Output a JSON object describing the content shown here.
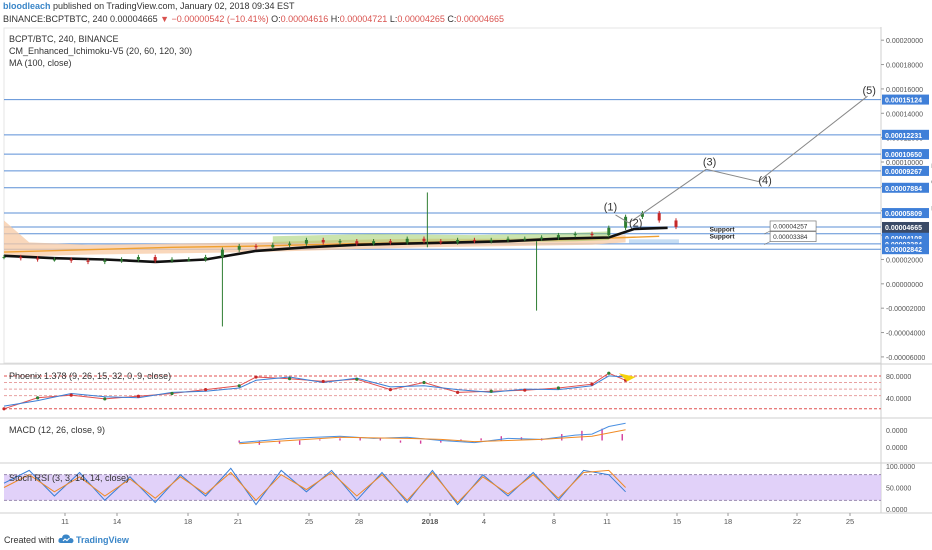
{
  "header": {
    "author": "bloodleach",
    "published": "published on TradingView.com, January 02, 2018 09:34 EST",
    "symbol_line": "BINANCE:BCPTBTC, 240",
    "last": "0.00004665",
    "change": "▼ −0.00000542 (−10.41%)",
    "o_label": "O:",
    "o": "0.00004616",
    "h_label": "H:",
    "h": "0.00004721",
    "l_label": "L:",
    "l": "0.00004265",
    "c_label": "C:",
    "c": "0.00004665"
  },
  "legend": {
    "pair": "BCPT/BTC, 240, BINANCE",
    "ichimoku": "CM_Enhanced_Ichimoku-V5 (20, 60, 120, 30)",
    "ma": "MA (100, close)",
    "phoenix": "Phoenix 1.378 (9, 26, 15, 32, 0, 9, close)",
    "macd": "MACD (12, 26, close, 9)",
    "stoch": "Stoch RSI (3, 3, 14, 14, close)"
  },
  "footer": {
    "created_with": "Created with",
    "brand": "TradingView"
  },
  "colors": {
    "candle_up": "#2e7d32",
    "candle_down": "#c62828",
    "cloud": "#f7c9a4",
    "cloud_green": "#8bc34a",
    "kijun": "#111111",
    "ma100": "#f0a030",
    "hline": "#5b8fd6",
    "projection": "#888888",
    "tag_blue": "#3f7fd8",
    "stoch_band": "#d9c6f7",
    "macd_line": "#4a90e2",
    "signal_line": "#f08a24",
    "histogram": "#d43c9b"
  },
  "chart_data": [
    {
      "type": "candlestick",
      "title": "BCPT/BTC, 240, BINANCE",
      "x_tick_labels": [
        "11",
        "14",
        "18",
        "21",
        "25",
        "28",
        "2018",
        "4",
        "8",
        "11",
        "15",
        "18",
        "22",
        "25"
      ],
      "y_tick_labels": [
        "0.00020000",
        "0.00018000",
        "0.00016000",
        "0.00014000",
        "0.00012000",
        "0.00010000",
        "0.00008000",
        "0.00006000",
        "0.00004000",
        "0.00002000",
        "0.00000000",
        "-0.00002000",
        "-0.00004000",
        "-0.00006000"
      ],
      "ylim": [
        -6.5e-05,
        0.00021
      ],
      "series": [
        {
          "type": "line",
          "name": "MA (100, close)",
          "x": [
            0,
            5,
            10,
            15,
            18,
            21,
            25,
            28,
            32,
            35,
            39
          ],
          "y": [
            2.6e-05,
            2.8e-05,
            3e-05,
            3.1e-05,
            3.2e-05,
            3.3e-05,
            3.4e-05,
            3.5e-05,
            3.6e-05,
            3.7e-05,
            3.9e-05
          ]
        }
      ],
      "kijun_line": {
        "x": [
          0,
          3,
          6,
          9,
          12,
          15,
          18,
          21,
          24,
          27,
          30,
          33,
          36,
          37.5,
          39.5
        ],
        "y": [
          2.3e-05,
          2.1e-05,
          2e-05,
          1.8e-05,
          2e-05,
          2.7e-05,
          3e-05,
          3.2e-05,
          3.3e-05,
          3.4e-05,
          3.5e-05,
          3.7e-05,
          3.8e-05,
          4.5e-05,
          4.6e-05
        ]
      },
      "candles_close": [
        2.2e-05,
        2.1e-05,
        2e-05,
        2e-05,
        1.9e-05,
        1.8e-05,
        1.9e-05,
        2e-05,
        2.2e-05,
        1.9e-05,
        2e-05,
        2e-05,
        2.2e-05,
        2.8e-05,
        3.1e-05,
        3e-05,
        3.2e-05,
        3.3e-05,
        3.6e-05,
        3.4e-05,
        3.5e-05,
        3.3e-05,
        3.5e-05,
        3.4e-05,
        3.7e-05,
        3.5e-05,
        3.4e-05,
        3.6e-05,
        3.5e-05,
        3.6e-05,
        3.7e-05,
        3.7e-05,
        3.8e-05,
        4e-05,
        4.1e-05,
        4e-05,
        4.6e-05,
        5.5e-05,
        5.8e-05,
        5.2e-05,
        4.67e-05
      ],
      "wicks": [
        {
          "x": 13.0,
          "high": 2.8e-05,
          "low": -3.5e-05
        },
        {
          "x": 25.2,
          "high": 7.5e-05,
          "low": 3e-05
        },
        {
          "x": 31.7,
          "high": 3.5e-05,
          "low": -2.2e-05
        }
      ],
      "horizontal_lines": [
        0.00015124,
        0.00012231,
        0.0001065,
        9.267e-05,
        7.884e-05,
        5.809e-05,
        4.665e-05,
        4.108e-05,
        3.284e-05,
        2.842e-05
      ],
      "price_tags": [
        "0.00015124",
        "0.00012231",
        "0.00010650",
        "0.00009267",
        "0.00007884",
        "0.00005809",
        "0.00004665",
        "01:25:06",
        "0.00004108",
        "0.00003284",
        "0.00002842"
      ],
      "price_tags_dark": [
        "0.00004665",
        "01:25:06"
      ],
      "callouts": [
        {
          "text": "0.00015121",
          "x": 60.5,
          "y": 0.00015121
        },
        {
          "text": "0.00012343",
          "x": 60.5,
          "y": 0.00012343
        },
        {
          "text": "0.00010706",
          "x": 60.5,
          "y": 0.00010706
        },
        {
          "text": "0.00009267",
          "x": 60.5,
          "y": 9.267e-05
        },
        {
          "text": "0.00007878",
          "x": 60.5,
          "y": 7.878e-05
        },
        {
          "text": "0.00005795",
          "x": 60.5,
          "y": 5.795e-05
        },
        {
          "text": "0.00004257",
          "x": 45.6,
          "y": 4.257e-05
        },
        {
          "text": "0.00003384",
          "x": 45.6,
          "y": 3.384e-05
        }
      ],
      "annotations": [
        {
          "text": "Resistance",
          "x": 55.2,
          "y": 9.5e-05
        },
        {
          "text": "61.8",
          "x": 55.2,
          "y": 8.2e-05
        },
        {
          "text": "Resistance",
          "x": 55.2,
          "y": 6e-05
        },
        {
          "text": "Support",
          "x": 42.0,
          "y": 4.3e-05
        },
        {
          "text": "Support",
          "x": 42.0,
          "y": 3.7e-05
        }
      ],
      "elliott_waves": [
        {
          "label": "(1)",
          "x": 35.7,
          "y": 6e-05
        },
        {
          "label": "(2)",
          "x": 37.2,
          "y": 4.7e-05
        },
        {
          "label": "(3)",
          "x": 41.6,
          "y": 9.7e-05
        },
        {
          "label": "(4)",
          "x": 44.9,
          "y": 8.2e-05
        },
        {
          "label": "(5)",
          "x": 51.1,
          "y": 0.000156
        }
      ],
      "wave_path": {
        "x": [
          37.2,
          41.8,
          44.9,
          51.4
        ],
        "y": [
          5e-05,
          9.4e-05,
          8.4e-05,
          0.000154
        ]
      }
    },
    {
      "type": "line",
      "title": "Phoenix 1.378 (9, 26, 15, 32, 0, 9, close)",
      "y_tick_labels": [
        "80.0000",
        "40.0000"
      ],
      "ylim": [
        5,
        100
      ],
      "reference_lines": [
        80,
        68,
        56,
        44,
        20
      ],
      "series": [
        {
          "name": "",
          "x": [
            0,
            2,
            4,
            6,
            8,
            10,
            12,
            14,
            15,
            17,
            19,
            21,
            23,
            25,
            27,
            29,
            31,
            33,
            35,
            36,
            37
          ],
          "y": [
            20,
            40,
            45,
            38,
            43,
            48,
            55,
            62,
            78,
            75,
            70,
            74,
            55,
            68,
            50,
            52,
            54,
            58,
            65,
            85,
            72
          ]
        },
        {
          "name": "",
          "x": [
            0,
            2,
            4,
            6,
            8,
            10,
            12,
            14,
            15,
            17,
            19,
            21,
            23,
            25,
            27,
            29,
            31,
            33,
            35,
            36,
            37
          ],
          "y": [
            25,
            35,
            48,
            42,
            40,
            50,
            52,
            58,
            72,
            78,
            68,
            76,
            60,
            62,
            55,
            50,
            56,
            55,
            62,
            80,
            78
          ]
        }
      ]
    },
    {
      "type": "line",
      "title": "MACD (12, 26, close, 9)",
      "y_tick_labels": [
        "0.0000",
        "0.0000"
      ],
      "ylim": [
        -1,
        1
      ],
      "series": [
        {
          "name": "",
          "x": [
            14,
            17,
            20,
            22,
            24,
            26,
            28,
            30,
            32,
            34,
            35,
            36,
            37
          ],
          "y": [
            -0.1,
            0.1,
            0.2,
            0.1,
            0.15,
            0.0,
            -0.1,
            0.1,
            0.05,
            0.25,
            0.3,
            0.65,
            0.8
          ]
        },
        {
          "name": "",
          "x": [
            14,
            17,
            20,
            22,
            24,
            26,
            28,
            30,
            32,
            34,
            35,
            36,
            37
          ],
          "y": [
            -0.15,
            0.0,
            0.15,
            0.12,
            0.1,
            0.05,
            -0.05,
            0.0,
            0.05,
            0.15,
            0.2,
            0.35,
            0.5
          ]
        }
      ],
      "histogram": [
        -0.1,
        -0.2,
        -0.15,
        -0.2,
        0.05,
        0.1,
        0.15,
        0.1,
        -0.1,
        -0.15,
        -0.1,
        0.05,
        0.1,
        0.2,
        0.15,
        0.1,
        0.3,
        0.45,
        0.55,
        0.3
      ]
    },
    {
      "type": "line",
      "title": "Stoch RSI (3, 3, 14, 14, close)",
      "y_tick_labels": [
        "100.0000",
        "50.0000",
        "0.0000"
      ],
      "ylim": [
        -5,
        105
      ],
      "band": [
        20,
        80
      ],
      "series": [
        {
          "name": "",
          "x": [
            0,
            1.5,
            3,
            4.5,
            6,
            7.5,
            9,
            10.5,
            12,
            13.5,
            15,
            16.5,
            18,
            19.5,
            21,
            22.5,
            24,
            25.5,
            27,
            28.5,
            30,
            31.5,
            33,
            34.5,
            36,
            37
          ],
          "y": [
            60,
            90,
            30,
            85,
            20,
            75,
            15,
            80,
            30,
            95,
            10,
            90,
            40,
            90,
            20,
            85,
            15,
            90,
            10,
            80,
            30,
            85,
            20,
            90,
            80,
            40
          ]
        },
        {
          "name": "",
          "x": [
            0,
            1.5,
            3,
            4.5,
            6,
            7.5,
            9,
            10.5,
            12,
            13.5,
            15,
            16.5,
            18,
            19.5,
            21,
            22.5,
            24,
            25.5,
            27,
            28.5,
            30,
            31.5,
            33,
            34.5,
            36,
            37
          ],
          "y": [
            50,
            80,
            40,
            75,
            30,
            70,
            25,
            75,
            35,
            85,
            20,
            80,
            45,
            85,
            30,
            80,
            20,
            85,
            15,
            75,
            35,
            80,
            25,
            85,
            90,
            50
          ]
        }
      ]
    }
  ]
}
